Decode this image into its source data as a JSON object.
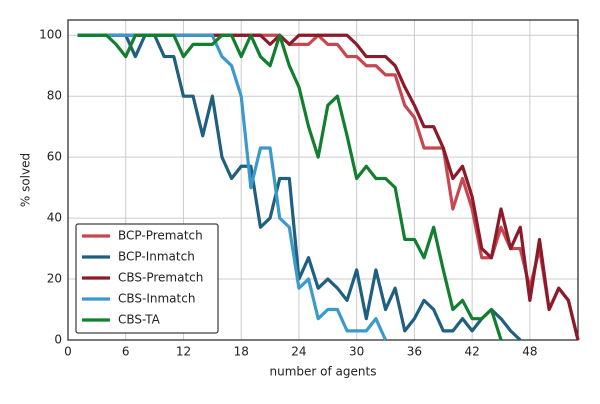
{
  "chart_data": {
    "type": "line",
    "xlabel": "number of agents",
    "ylabel": "% solved",
    "x": [
      1,
      2,
      3,
      4,
      5,
      6,
      7,
      8,
      9,
      10,
      11,
      12,
      13,
      14,
      15,
      16,
      17,
      18,
      19,
      20,
      21,
      22,
      23,
      24,
      25,
      26,
      27,
      28,
      29,
      30,
      31,
      32,
      33,
      34,
      35,
      36,
      37,
      38,
      39,
      40,
      41,
      42,
      43,
      44,
      45,
      46,
      47,
      48,
      49,
      50,
      51,
      52,
      53
    ],
    "xlim": [
      0,
      53
    ],
    "xticks": [
      0,
      6,
      12,
      18,
      24,
      30,
      36,
      42,
      48
    ],
    "ylim": [
      0,
      105
    ],
    "yticks": [
      0,
      20,
      40,
      60,
      80,
      100
    ],
    "grid": true,
    "legend": "lower left",
    "series": [
      {
        "name": "BCP-Prematch",
        "color": "#c8474f",
        "values": [
          100,
          100,
          100,
          100,
          100,
          100,
          100,
          100,
          100,
          100,
          100,
          100,
          100,
          100,
          100,
          100,
          100,
          100,
          100,
          100,
          100,
          100,
          97,
          97,
          97,
          100,
          97,
          97,
          93,
          93,
          90,
          90,
          87,
          87,
          77,
          73,
          63,
          63,
          63,
          43,
          53,
          43,
          27,
          27,
          37,
          30,
          30,
          17,
          30,
          10,
          17,
          13,
          0
        ]
      },
      {
        "name": "BCP-Inmatch",
        "color": "#1f5f7f",
        "values": [
          100,
          100,
          100,
          100,
          100,
          100,
          93,
          100,
          100,
          93,
          93,
          80,
          80,
          67,
          80,
          60,
          53,
          57,
          57,
          37,
          40,
          53,
          53,
          20,
          27,
          17,
          20,
          17,
          13,
          23,
          7,
          23,
          10,
          17,
          3,
          7,
          13,
          10,
          3,
          3,
          7,
          3,
          7,
          10,
          7,
          3,
          0,
          null,
          null,
          null,
          null,
          null,
          null
        ]
      },
      {
        "name": "CBS-Prematch",
        "color": "#8b1a2a",
        "values": [
          100,
          100,
          100,
          100,
          100,
          100,
          100,
          100,
          100,
          100,
          100,
          100,
          100,
          100,
          100,
          100,
          100,
          100,
          100,
          100,
          97,
          100,
          97,
          100,
          100,
          100,
          100,
          100,
          100,
          97,
          93,
          93,
          93,
          90,
          83,
          77,
          70,
          70,
          63,
          53,
          57,
          47,
          30,
          27,
          43,
          30,
          37,
          13,
          33,
          10,
          17,
          13,
          0
        ]
      },
      {
        "name": "CBS-Inmatch",
        "color": "#3a9acb",
        "values": [
          100,
          100,
          100,
          100,
          100,
          100,
          100,
          100,
          100,
          100,
          100,
          100,
          100,
          100,
          100,
          93,
          90,
          80,
          50,
          63,
          63,
          40,
          37,
          17,
          20,
          7,
          10,
          10,
          3,
          3,
          3,
          7,
          0,
          null,
          null,
          null,
          null,
          null,
          null,
          null,
          null,
          null,
          null,
          null,
          null,
          null,
          null,
          null,
          null,
          null,
          null,
          null,
          null
        ]
      },
      {
        "name": "CBS-TA",
        "color": "#127f2e",
        "values": [
          100,
          100,
          100,
          100,
          97,
          93,
          100,
          100,
          100,
          100,
          100,
          93,
          97,
          97,
          97,
          100,
          100,
          93,
          100,
          93,
          90,
          100,
          90,
          83,
          70,
          60,
          77,
          80,
          67,
          53,
          57,
          53,
          53,
          50,
          33,
          33,
          27,
          37,
          23,
          10,
          13,
          7,
          7,
          10,
          0,
          null,
          null,
          null,
          null,
          null,
          null,
          null,
          null
        ]
      }
    ]
  }
}
